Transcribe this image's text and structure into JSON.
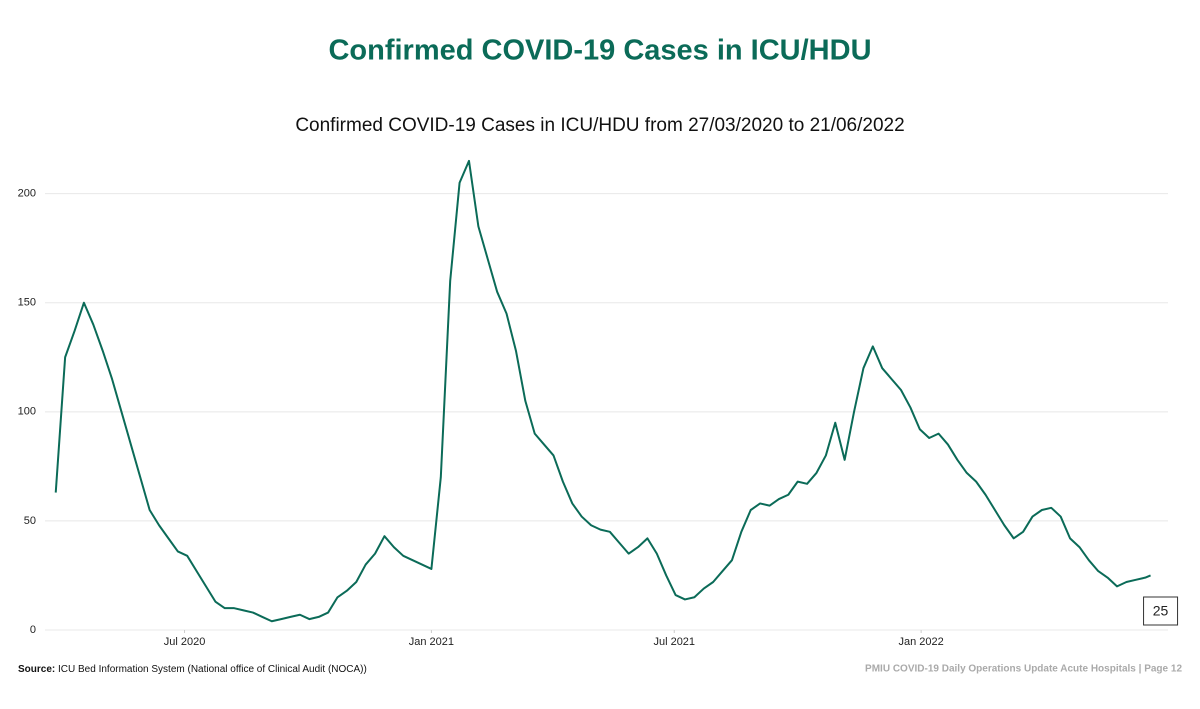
{
  "header": {
    "title": "Confirmed COVID-19 Cases in ICU/HDU"
  },
  "chart_data": {
    "type": "line",
    "title": "Confirmed COVID-19 Cases in ICU/HDU from 27/03/2020 to 21/06/2022",
    "color": "#0b6b58",
    "grid": true,
    "x": [
      "2020-03-27",
      "2020-04-03",
      "2020-04-10",
      "2020-04-17",
      "2020-04-24",
      "2020-05-01",
      "2020-05-08",
      "2020-05-15",
      "2020-05-22",
      "2020-05-29",
      "2020-06-05",
      "2020-06-12",
      "2020-06-19",
      "2020-06-26",
      "2020-07-03",
      "2020-07-10",
      "2020-07-17",
      "2020-07-24",
      "2020-07-31",
      "2020-08-07",
      "2020-08-14",
      "2020-08-21",
      "2020-08-28",
      "2020-09-04",
      "2020-09-11",
      "2020-09-18",
      "2020-09-25",
      "2020-10-02",
      "2020-10-09",
      "2020-10-16",
      "2020-10-23",
      "2020-10-30",
      "2020-11-06",
      "2020-11-13",
      "2020-11-20",
      "2020-11-27",
      "2020-12-04",
      "2020-12-11",
      "2020-12-18",
      "2020-12-25",
      "2021-01-01",
      "2021-01-08",
      "2021-01-15",
      "2021-01-22",
      "2021-01-29",
      "2021-02-05",
      "2021-02-12",
      "2021-02-19",
      "2021-02-26",
      "2021-03-05",
      "2021-03-12",
      "2021-03-19",
      "2021-03-26",
      "2021-04-02",
      "2021-04-09",
      "2021-04-16",
      "2021-04-23",
      "2021-04-30",
      "2021-05-07",
      "2021-05-14",
      "2021-05-21",
      "2021-05-28",
      "2021-06-04",
      "2021-06-11",
      "2021-06-18",
      "2021-06-25",
      "2021-07-02",
      "2021-07-09",
      "2021-07-16",
      "2021-07-23",
      "2021-07-30",
      "2021-08-06",
      "2021-08-13",
      "2021-08-20",
      "2021-08-27",
      "2021-09-03",
      "2021-09-10",
      "2021-09-17",
      "2021-09-24",
      "2021-10-01",
      "2021-10-08",
      "2021-10-15",
      "2021-10-22",
      "2021-10-29",
      "2021-11-05",
      "2021-11-12",
      "2021-11-19",
      "2021-11-26",
      "2021-12-03",
      "2021-12-10",
      "2021-12-17",
      "2021-12-24",
      "2021-12-31",
      "2022-01-07",
      "2022-01-14",
      "2022-01-21",
      "2022-01-28",
      "2022-02-04",
      "2022-02-11",
      "2022-02-18",
      "2022-02-25",
      "2022-03-04",
      "2022-03-11",
      "2022-03-18",
      "2022-03-25",
      "2022-04-01",
      "2022-04-08",
      "2022-04-15",
      "2022-04-22",
      "2022-04-29",
      "2022-05-06",
      "2022-05-13",
      "2022-05-20",
      "2022-05-27",
      "2022-06-03",
      "2022-06-10",
      "2022-06-17",
      "2022-06-21"
    ],
    "values": [
      63,
      125,
      137,
      150,
      140,
      128,
      115,
      100,
      85,
      70,
      55,
      48,
      42,
      36,
      34,
      27,
      20,
      13,
      10,
      10,
      9,
      8,
      6,
      4,
      5,
      6,
      7,
      5,
      6,
      8,
      15,
      18,
      22,
      30,
      35,
      43,
      38,
      34,
      32,
      30,
      28,
      70,
      160,
      205,
      215,
      185,
      170,
      155,
      145,
      128,
      105,
      90,
      85,
      80,
      68,
      58,
      52,
      48,
      46,
      45,
      40,
      35,
      38,
      42,
      35,
      25,
      16,
      14,
      15,
      19,
      22,
      27,
      32,
      45,
      55,
      58,
      57,
      60,
      62,
      68,
      67,
      72,
      80,
      95,
      78,
      100,
      120,
      130,
      120,
      115,
      110,
      102,
      92,
      88,
      90,
      85,
      78,
      72,
      68,
      62,
      55,
      48,
      42,
      45,
      52,
      55,
      56,
      52,
      42,
      38,
      32,
      27,
      24,
      20,
      22,
      23,
      24,
      25
    ],
    "xlim": [
      "2020-03-19",
      "2022-07-04"
    ],
    "xticks": [
      {
        "value": "2020-07-01",
        "label": "Jul 2020"
      },
      {
        "value": "2021-01-01",
        "label": "Jan 2021"
      },
      {
        "value": "2021-07-01",
        "label": "Jul 2021"
      },
      {
        "value": "2022-01-01",
        "label": "Jan 2022"
      }
    ],
    "ylim": [
      0,
      220
    ],
    "yticks": [
      0,
      50,
      100,
      150,
      200
    ]
  },
  "footer": {
    "source_label": "Source:",
    "source": "ICU Bed Information System (National office of Clinical Audit (NOCA))",
    "page": "PMIU COVID-19 Daily Operations Update Acute Hospitals |  Page 12"
  }
}
